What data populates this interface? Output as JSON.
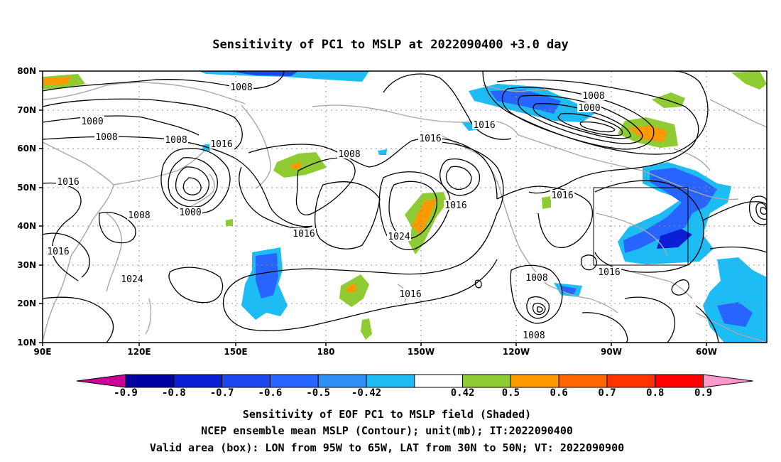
{
  "title": "Sensitivity of PC1 to MSLP at 2022090400 +3.0 day",
  "lat_labels": [
    "80N",
    "70N",
    "60N",
    "50N",
    "40N",
    "30N",
    "20N",
    "10N"
  ],
  "lon_labels": [
    "90E",
    "120E",
    "150E",
    "180",
    "150W",
    "120W",
    "90W",
    "60W"
  ],
  "contour_labels": [
    {
      "text": "1008"
    },
    {
      "text": "1008"
    },
    {
      "text": "1000"
    },
    {
      "text": "1016"
    },
    {
      "text": "1000"
    },
    {
      "text": "1008"
    },
    {
      "text": "1008"
    },
    {
      "text": "1016"
    },
    {
      "text": "1008"
    },
    {
      "text": "1016"
    },
    {
      "text": "1016"
    },
    {
      "text": "1016"
    },
    {
      "text": "1000"
    },
    {
      "text": "1016"
    },
    {
      "text": "1024"
    },
    {
      "text": "1016"
    },
    {
      "text": "1024"
    },
    {
      "text": "1016"
    },
    {
      "text": "1016"
    },
    {
      "text": "1008"
    },
    {
      "text": "1016"
    },
    {
      "text": "1008"
    },
    {
      "text": "1008"
    }
  ],
  "colorbar": {
    "colors": [
      "#cc0099",
      "#0000a0",
      "#0a1fd6",
      "#1e46f0",
      "#2864ff",
      "#2f8ff5",
      "#1ebcf5",
      "#ffffff",
      "#8fcc33",
      "#ff9900",
      "#ff6600",
      "#ff3300",
      "#ff0000",
      "#ff99cc"
    ],
    "labels": [
      "-0.9",
      "-0.8",
      "-0.7",
      "-0.6",
      "-0.5",
      "-0.42",
      "0.42",
      "0.5",
      "0.6",
      "0.7",
      "0.8",
      "0.9"
    ]
  },
  "captions": [
    "Sensitivity of EOF PC1 to MSLP field (Shaded)",
    "NCEP ensemble mean MSLP (Contour); unit(mb); IT:2022090400",
    "Valid area (box): LON from 95W to 65W, LAT from 30N to 50N; VT: 2022090900"
  ]
}
